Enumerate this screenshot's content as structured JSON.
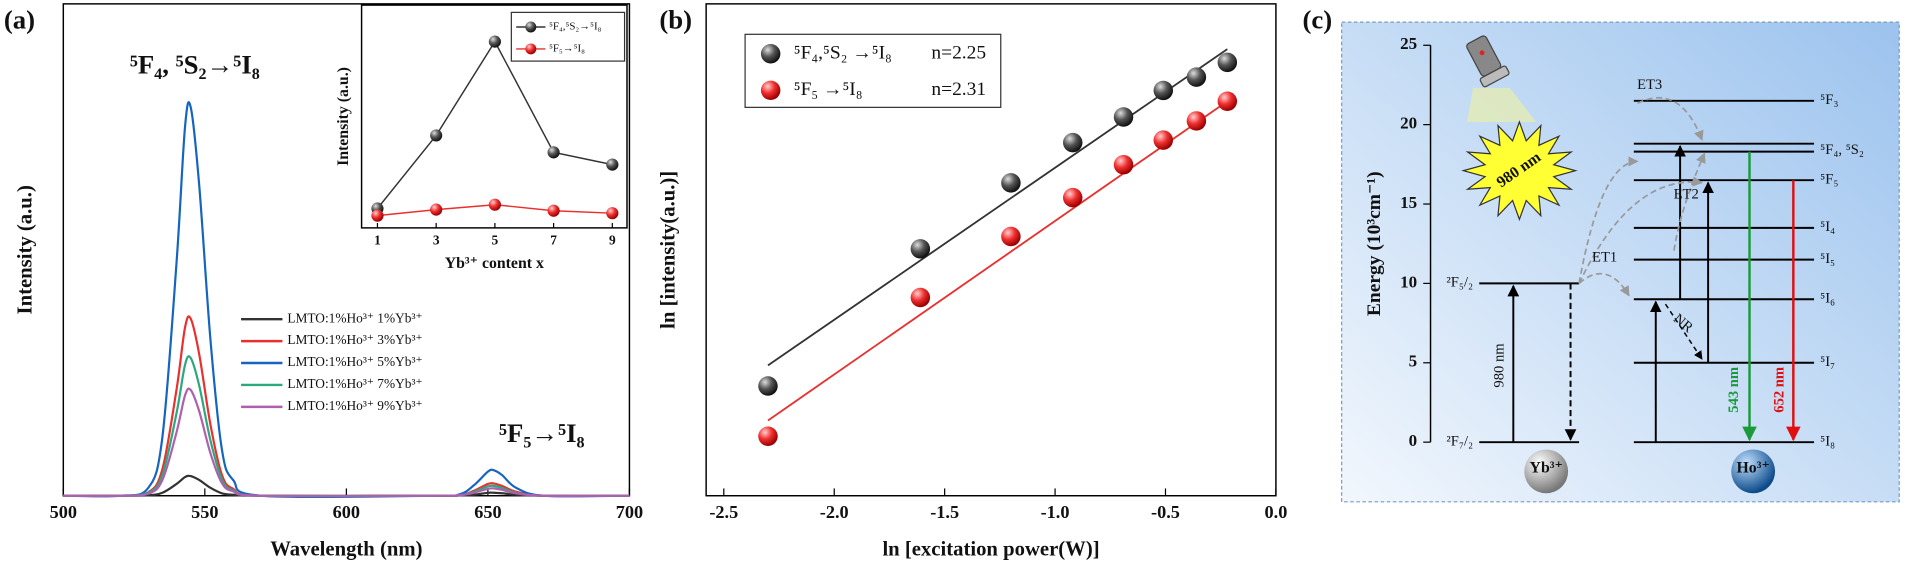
{
  "chart_data": [
    {
      "type": "line",
      "panel_label": "(a)",
      "xlabel": "Wavelength (nm)",
      "ylabel": "Intensity (a.u.)",
      "annotations": [
        "⁵F₄, ⁵S₂→⁵I₈",
        "⁵F₅→⁵I₈"
      ],
      "xlim": [
        500,
        700
      ],
      "xticks": [
        500,
        550,
        600,
        650,
        700
      ],
      "ylim": [
        0,
        100
      ],
      "x": [
        500,
        520,
        530,
        535,
        540,
        543,
        545,
        548,
        552,
        556,
        560,
        570,
        630,
        640,
        645,
        650,
        652,
        655,
        660,
        670,
        700
      ],
      "series": [
        {
          "name": "LMTO:1%Ho³⁺ 1%Yb³⁺",
          "color": "#333333",
          "values": [
            0,
            0,
            0.1,
            0.6,
            2.4,
            3.8,
            4,
            3.2,
            1.6,
            0.5,
            0.2,
            0,
            0,
            0.03,
            0.2,
            0.6,
            0.6,
            0.5,
            0.2,
            0,
            0
          ]
        },
        {
          "name": "LMTO:1%Ho³⁺ 3%Yb³⁺",
          "color": "#e8312f",
          "values": [
            0,
            0,
            0.7,
            5.4,
            21.6,
            34.2,
            36,
            28.8,
            14.4,
            4.3,
            1.4,
            0,
            0,
            0.1,
            1,
            2.4,
            2.5,
            2,
            0.8,
            0,
            0
          ]
        },
        {
          "name": "LMTO:1%Ho³⁺ 5%Yb³⁺",
          "color": "#1565c0",
          "values": [
            0,
            0,
            1.6,
            11.9,
            47.4,
            75,
            79,
            63.2,
            31.6,
            9.5,
            3.2,
            0,
            0,
            0.3,
            2.1,
            4.9,
            5.2,
            4.2,
            1.6,
            0,
            0
          ]
        },
        {
          "name": "LMTO:1%Ho³⁺ 7%Yb³⁺",
          "color": "#2ca87f",
          "values": [
            0,
            0,
            0.6,
            4.2,
            16.8,
            26.6,
            28,
            22.4,
            11.2,
            3.4,
            1.1,
            0,
            0,
            0.1,
            0.8,
            1.9,
            2,
            1.6,
            0.6,
            0,
            0
          ]
        },
        {
          "name": "LMTO:1%Ho³⁺ 9%Yb³⁺",
          "color": "#b05fae",
          "values": [
            0,
            0,
            0.4,
            3.2,
            12.9,
            20.4,
            21.5,
            17.2,
            8.6,
            2.6,
            0.9,
            0,
            0,
            0.1,
            0.6,
            1.4,
            1.5,
            1.2,
            0.5,
            0,
            0
          ]
        }
      ]
    },
    {
      "type": "line",
      "markers": true,
      "xlabel": "Yb³⁺ content x",
      "ylabel": "Intensity (a.u.)",
      "xlim": [
        0.46,
        9.5
      ],
      "xticks": [
        1,
        3,
        5,
        7,
        9
      ],
      "ylim": [
        0,
        100
      ],
      "x": [
        1,
        3,
        5,
        7,
        9
      ],
      "series": [
        {
          "name": "⁵F₄,⁵S₂→⁵I₈",
          "color": "#333333",
          "values": [
            8.7,
            41.5,
            83.6,
            33.9,
            28.4
          ]
        },
        {
          "name": "⁵F₅→⁵I₈",
          "color": "#e8312f",
          "values": [
            5.5,
            8.2,
            10.4,
            7.7,
            6.6
          ]
        }
      ]
    },
    {
      "type": "scatter",
      "panel_label": "(b)",
      "xlabel": "ln [excitation power(W)]",
      "ylabel": "ln [intensity(a.u.)]",
      "xlim": [
        -2.58,
        0
      ],
      "xticks": [
        -2.5,
        {
          "value": -2,
          "label": "-2.0"
        },
        -1.5,
        {
          "value": -1,
          "label": "-1.0"
        },
        -0.5,
        {
          "value": 0,
          "label": "0.0"
        }
      ],
      "ylim": [
        0,
        100
      ],
      "x": [
        -2.3,
        -1.61,
        -1.2,
        -0.92,
        -0.69,
        -0.51,
        -0.36,
        -0.22
      ],
      "series": [
        {
          "name": "⁵F₄,⁵S₂ →⁵I₈",
          "slope_label": "n=2.25",
          "color": "#333333",
          "values": [
            22.3,
            50.2,
            63.6,
            71.8,
            77.0,
            82.4,
            85.1,
            88.1
          ],
          "fit": {
            "x": [
              -2.3,
              -0.22
            ],
            "values": [
              26.5,
              90.8
            ]
          }
        },
        {
          "name": "⁵F₅ →⁵I₈",
          "slope_label": "n=2.31",
          "color": "#e8312f",
          "values": [
            12.1,
            40.3,
            52.7,
            60.6,
            67.3,
            72.3,
            76.2,
            80.2
          ],
          "fit": {
            "x": [
              -2.3,
              -0.22
            ],
            "values": [
              15.3,
              80.2
            ]
          }
        }
      ]
    }
  ],
  "diagram": {
    "panel_label": "(c)",
    "ylabel": "Energy (10³cm⁻¹)",
    "ylim": [
      0,
      25
    ],
    "yticks": [
      0,
      5,
      10,
      15,
      20,
      25
    ],
    "yb_levels": [
      {
        "label": "²F₅/₂",
        "energies": [
          10
        ]
      },
      {
        "label": "²F₇/₂",
        "energies": [
          0
        ]
      }
    ],
    "ho_levels": [
      {
        "label": "⁵F₃",
        "energies": [
          21.5
        ]
      },
      {
        "label": "⁵F₄, ⁵S₂",
        "energies": [
          18.8,
          18.3
        ]
      },
      {
        "label": "⁵F₅",
        "energies": [
          16.5
        ]
      },
      {
        "label": "⁵I₄",
        "energies": [
          13.5
        ]
      },
      {
        "label": "⁵I₅",
        "energies": [
          11.5
        ]
      },
      {
        "label": "⁵I₆",
        "energies": [
          9
        ]
      },
      {
        "label": "⁵I₇",
        "energies": [
          5
        ]
      },
      {
        "label": "⁵I₈",
        "energies": [
          0
        ]
      }
    ],
    "ion_labels": [
      "Yb³⁺",
      "Ho³⁺"
    ],
    "transfer_labels": [
      "ET1",
      "ET2",
      "ET3",
      "NR"
    ],
    "pump_label": "980 nm",
    "laser_label": "980 nm",
    "emission_labels": [
      "543 nm",
      "652 nm"
    ]
  }
}
